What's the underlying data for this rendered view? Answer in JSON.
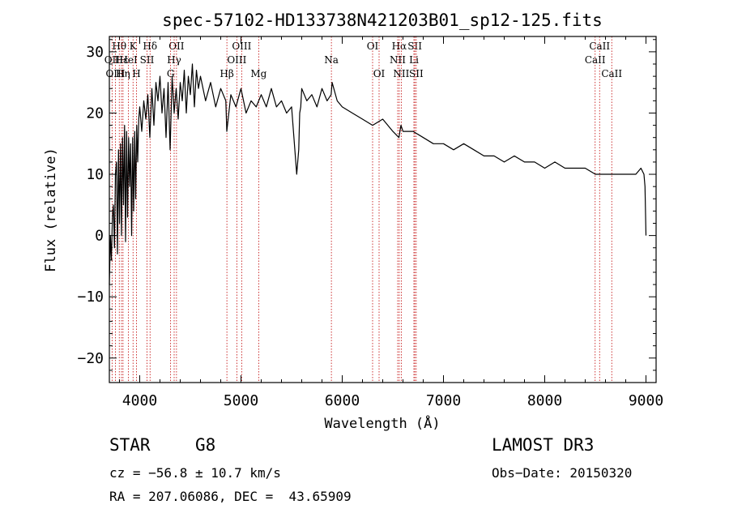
{
  "chart_data": {
    "type": "line",
    "title": "spec-57102-HD133738N421203B01_sp12-125.fits",
    "xlabel": "Wavelength (Å)",
    "ylabel": "Flux (relative)",
    "xlim": [
      3700,
      9100
    ],
    "ylim": [
      -24,
      32.5
    ],
    "xticks": [
      4000,
      5000,
      6000,
      7000,
      8000,
      9000
    ],
    "yticks": [
      -20,
      -10,
      0,
      10,
      20,
      30
    ],
    "series": [
      {
        "name": "flux",
        "x": [
          3700,
          3710,
          3720,
          3730,
          3740,
          3750,
          3760,
          3770,
          3780,
          3790,
          3800,
          3810,
          3820,
          3830,
          3840,
          3850,
          3860,
          3870,
          3880,
          3890,
          3900,
          3910,
          3920,
          3930,
          3940,
          3950,
          3960,
          3970,
          3980,
          3990,
          4000,
          4020,
          4040,
          4060,
          4080,
          4100,
          4120,
          4140,
          4160,
          4180,
          4200,
          4220,
          4240,
          4260,
          4280,
          4300,
          4320,
          4340,
          4360,
          4380,
          4400,
          4420,
          4440,
          4460,
          4480,
          4500,
          4520,
          4540,
          4560,
          4580,
          4600,
          4650,
          4700,
          4750,
          4800,
          4850,
          4860,
          4900,
          4950,
          5000,
          5050,
          5100,
          5150,
          5200,
          5250,
          5300,
          5350,
          5400,
          5450,
          5500,
          5550,
          5570,
          5580,
          5590,
          5600,
          5650,
          5700,
          5750,
          5800,
          5850,
          5890,
          5900,
          5950,
          6000,
          6100,
          6200,
          6300,
          6400,
          6500,
          6560,
          6580,
          6600,
          6700,
          6800,
          6900,
          7000,
          7100,
          7200,
          7300,
          7400,
          7500,
          7600,
          7700,
          7800,
          7900,
          8000,
          8100,
          8200,
          8300,
          8400,
          8500,
          8540,
          8600,
          8660,
          8700,
          8800,
          8900,
          8950,
          8980,
          8990,
          9000
        ],
        "values": [
          -8,
          0,
          -4,
          3,
          5,
          -2,
          10,
          12,
          -3,
          14,
          2,
          15,
          0,
          16,
          5,
          18,
          -1,
          17,
          3,
          16,
          8,
          15,
          0,
          16,
          4,
          17,
          6,
          18,
          12,
          19,
          21,
          17,
          22,
          19,
          23,
          16,
          24,
          18,
          25,
          22,
          26,
          20,
          24,
          16,
          25,
          14,
          26,
          20,
          24,
          19,
          25,
          22,
          27,
          20,
          26,
          23,
          28,
          21,
          27,
          24,
          26,
          22,
          25,
          21,
          24,
          22,
          17,
          23,
          21,
          24,
          20,
          22,
          21,
          23,
          21,
          24,
          21,
          22,
          20,
          21,
          10,
          14,
          20,
          21,
          24,
          22,
          23,
          21,
          24,
          22,
          23,
          25,
          22,
          21,
          20,
          19,
          18,
          19,
          17,
          16,
          18,
          17,
          17,
          16,
          15,
          15,
          14,
          15,
          14,
          13,
          13,
          12,
          13,
          12,
          12,
          11,
          12,
          11,
          11,
          11,
          10,
          10,
          10,
          10,
          10,
          10,
          10,
          11,
          10,
          8,
          0
        ]
      }
    ],
    "line_markers": [
      {
        "label": "Hθ",
        "wavelength": 3798,
        "row": 0
      },
      {
        "label": "K",
        "wavelength": 3934,
        "row": 0
      },
      {
        "label": "Hδ",
        "wavelength": 4102,
        "row": 0
      },
      {
        "label": "OII",
        "wavelength": 4363,
        "row": 0
      },
      {
        "label": "OIII",
        "wavelength": 5007,
        "row": 0
      },
      {
        "label": "OI",
        "wavelength": 6300,
        "row": 0
      },
      {
        "label": "Hα",
        "wavelength": 6563,
        "row": 0
      },
      {
        "label": "SII",
        "wavelength": 6717,
        "row": 0
      },
      {
        "label": "CaII",
        "wavelength": 8542,
        "row": 0
      },
      {
        "label": "OII",
        "wavelength": 3727,
        "row": 1
      },
      {
        "label": "Hε",
        "wavelength": 3820,
        "row": 1
      },
      {
        "label": "HeI",
        "wavelength": 3889,
        "row": 1
      },
      {
        "label": "SII",
        "wavelength": 4072,
        "row": 1
      },
      {
        "label": "Hγ",
        "wavelength": 4340,
        "row": 1
      },
      {
        "label": "OIII",
        "wavelength": 4959,
        "row": 1
      },
      {
        "label": "Na",
        "wavelength": 5893,
        "row": 1
      },
      {
        "label": "NII",
        "wavelength": 6548,
        "row": 1
      },
      {
        "label": "Li",
        "wavelength": 6708,
        "row": 1
      },
      {
        "label": "CaII",
        "wavelength": 8498,
        "row": 1
      },
      {
        "label": "OIII",
        "wavelength": 3760,
        "row": 2
      },
      {
        "label": "Hη",
        "wavelength": 3835,
        "row": 2
      },
      {
        "label": "H",
        "wavelength": 3968,
        "row": 2
      },
      {
        "label": "G",
        "wavelength": 4305,
        "row": 2
      },
      {
        "label": "Hβ",
        "wavelength": 4861,
        "row": 2
      },
      {
        "label": "Mg",
        "wavelength": 5175,
        "row": 2
      },
      {
        "label": "OI",
        "wavelength": 6364,
        "row": 2
      },
      {
        "label": "NII",
        "wavelength": 6583,
        "row": 2
      },
      {
        "label": "SII",
        "wavelength": 6731,
        "row": 2
      },
      {
        "label": "CaII",
        "wavelength": 8662,
        "row": 2
      }
    ]
  },
  "info": {
    "class_label": "STAR",
    "subclass": "G8",
    "survey": "LAMOST DR3",
    "cz": "cz = −56.8 ± 10.7 km/s",
    "obs_date": "Obs−Date: 20150320",
    "radec": "RA = 207.06086, DEC =  43.65909"
  },
  "colors": {
    "axis": "#000000",
    "line": "#000000",
    "marker": "#c00000",
    "background": "#ffffff"
  }
}
